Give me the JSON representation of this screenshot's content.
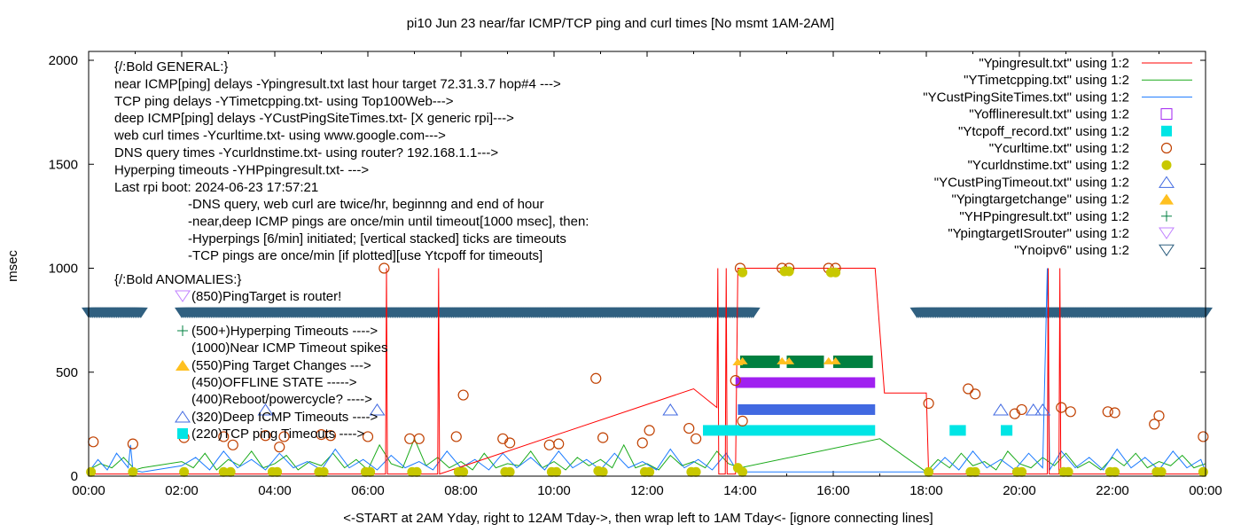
{
  "chart_data": {
    "type": "line",
    "title": "pi10 Jun 23  near/far ICMP/TCP ping and curl times [No msmt 1AM-2AM]",
    "xlabel": "<-START at 2AM Yday, right to 12AM Tday->, then wrap left to 1AM Tday<- [ignore connecting lines]",
    "ylabel": "msec",
    "xlim": [
      0,
      24
    ],
    "ylim": [
      0,
      2000
    ],
    "x_ticks": [
      0,
      2,
      4,
      6,
      8,
      10,
      12,
      14,
      16,
      18,
      20,
      22,
      24
    ],
    "x_tick_labels": [
      "00:00",
      "02:00",
      "04:00",
      "06:00",
      "08:00",
      "10:00",
      "12:00",
      "14:00",
      "16:00",
      "18:00",
      "20:00",
      "22:00",
      "00:00"
    ],
    "y_ticks": [
      0,
      500,
      1000,
      1500,
      2000
    ],
    "y_tick_labels": [
      "0",
      "500",
      "1000",
      "1500",
      "2000"
    ],
    "legend_position": "top-right",
    "legend": [
      {
        "label": "\"Ypingresult.txt\" using 1:2",
        "marker": "line",
        "color": "#ff0000"
      },
      {
        "label": "\"YTimetcpping.txt\" using 1:2",
        "marker": "line",
        "color": "#1aaa1a"
      },
      {
        "label": "\"YCustPingSiteTimes.txt\" using 1:2",
        "marker": "line",
        "color": "#1a7aff"
      },
      {
        "label": "\"Yofflineresult.txt\" using 1:2",
        "marker": "square-open",
        "color": "#a020f0"
      },
      {
        "label": "\"Ytcpoff_record.txt\" using 1:2",
        "marker": "square-filled",
        "color": "#00e5e5"
      },
      {
        "label": "\"Ycurltime.txt\" using 1:2",
        "marker": "circle-open",
        "color": "#c04000"
      },
      {
        "label": "\"Ycurldnstime.txt\" using 1:2",
        "marker": "circle-filled",
        "color": "#c8c800"
      },
      {
        "label": "\"YCustPingTimeout.txt\" using 1:2",
        "marker": "triangle-open",
        "color": "#4169e1"
      },
      {
        "label": "\"Ypingtargetchange\" using 1:2",
        "marker": "triangle-filled",
        "color": "#ffc020"
      },
      {
        "label": "\"YHPpingresult.txt\" using 1:2",
        "marker": "plus",
        "color": "#008040"
      },
      {
        "label": "\"YpingtargetISrouter\" using 1:2",
        "marker": "tri-down-open",
        "color": "#c080ff"
      },
      {
        "label": "\"Ynoipv6\" using 1:2",
        "marker": "tri-down-open",
        "color": "#306080"
      }
    ],
    "general_annotations": [
      "{/:Bold GENERAL:}",
      "near ICMP[ping] delays -Ypingresult.txt last hour target 72.31.3.7 hop#4 --->",
      "TCP ping delays -YTimetcpping.txt- using Top100Web--->",
      "deep ICMP[ping] delays -YCustPingSiteTimes.txt- [X generic rpi]--->",
      "web curl times -Ycurltime.txt- using www.google.com--->",
      "DNS query times -Ycurldnstime.txt- using router? 192.168.1.1--->",
      "Hyperping timeouts -YHPpingresult.txt- --->",
      "Last rpi boot: 2024-06-23 17:57:21"
    ],
    "notes": [
      "-DNS query, web curl are twice/hr, beginnng and end of hour",
      "-near,deep ICMP pings are once/min until timeout[1000 msec], then:",
      "  -Hyperpings [6/min] initiated; [vertical stacked] ticks are timeouts",
      "-TCP pings are once/min [if plotted][use Ytcpoff for timeouts]"
    ],
    "anomalies_title": "{/:Bold ANOMALIES:}",
    "anomalies": [
      {
        "text": "(850)PingTarget is router!",
        "marker": "tri-down-open",
        "color": "#c080ff"
      },
      {
        "text": "(500+)Hyperping Timeouts ---->",
        "marker": "plus",
        "color": "#008040"
      },
      {
        "text": "(1000)Near ICMP Timeout spikes",
        "marker": "none",
        "color": "#000000"
      },
      {
        "text": "(550)Ping Target Changes --->",
        "marker": "triangle-filled",
        "color": "#ffc020"
      },
      {
        "text": "(450)OFFLINE STATE ----->",
        "marker": "none",
        "color": "#000000"
      },
      {
        "text": "(400)Reboot/powercycle? ---->",
        "marker": "none",
        "color": "#000000"
      },
      {
        "text": "(320)Deep ICMP Timeouts ---->",
        "marker": "triangle-open",
        "color": "#4169e1"
      },
      {
        "text": "(220)TCP ping Timeouts ---->",
        "marker": "square-filled",
        "color": "#00e5e5"
      }
    ],
    "series": {
      "Ypingresult": [
        [
          0,
          10
        ],
        [
          6.38,
          10
        ],
        [
          6.4,
          1000
        ],
        [
          6.42,
          10
        ],
        [
          7.5,
          10
        ],
        [
          7.52,
          1000
        ],
        [
          7.54,
          10
        ],
        [
          13.0,
          420
        ],
        [
          13.5,
          330
        ],
        [
          13.52,
          1000
        ],
        [
          13.54,
          10
        ],
        [
          13.68,
          10
        ],
        [
          13.7,
          1000
        ],
        [
          13.72,
          10
        ],
        [
          13.9,
          10
        ],
        [
          13.95,
          1000
        ],
        [
          16.9,
          1000
        ],
        [
          17.1,
          400
        ],
        [
          18.0,
          400
        ],
        [
          18.05,
          10
        ],
        [
          20.6,
          10
        ],
        [
          20.62,
          1000
        ],
        [
          20.64,
          10
        ],
        [
          20.85,
          10
        ],
        [
          20.87,
          1000
        ],
        [
          20.89,
          10
        ],
        [
          24,
          10
        ]
      ],
      "YTimetcpping": [
        [
          0,
          30
        ],
        [
          0.25,
          60
        ],
        [
          0.5,
          40
        ],
        [
          0.75,
          90
        ],
        [
          1.0,
          30
        ],
        [
          1.15,
          40
        ],
        [
          2.0,
          70
        ],
        [
          2.25,
          40
        ],
        [
          2.5,
          110
        ],
        [
          2.75,
          30
        ],
        [
          3.0,
          80
        ],
        [
          3.25,
          50
        ],
        [
          3.5,
          120
        ],
        [
          3.75,
          40
        ],
        [
          4.0,
          60
        ],
        [
          4.25,
          100
        ],
        [
          4.5,
          30
        ],
        [
          4.75,
          70
        ],
        [
          5.0,
          50
        ],
        [
          5.25,
          110
        ],
        [
          5.5,
          40
        ],
        [
          5.75,
          80
        ],
        [
          6.0,
          30
        ],
        [
          6.25,
          150
        ],
        [
          6.5,
          60
        ],
        [
          6.75,
          40
        ],
        [
          7.0,
          180
        ],
        [
          7.25,
          50
        ],
        [
          7.5,
          90
        ],
        [
          7.75,
          40
        ],
        [
          8.0,
          70
        ],
        [
          8.25,
          30
        ],
        [
          8.5,
          110
        ],
        [
          8.75,
          40
        ],
        [
          9.0,
          60
        ],
        [
          9.25,
          50
        ],
        [
          9.5,
          120
        ],
        [
          9.75,
          40
        ],
        [
          10.0,
          70
        ],
        [
          10.25,
          30
        ],
        [
          10.5,
          90
        ],
        [
          10.75,
          50
        ],
        [
          11.0,
          80
        ],
        [
          11.25,
          40
        ],
        [
          11.5,
          150
        ],
        [
          11.75,
          40
        ],
        [
          12.0,
          60
        ],
        [
          12.25,
          30
        ],
        [
          12.5,
          100
        ],
        [
          12.75,
          50
        ],
        [
          13.0,
          70
        ],
        [
          13.25,
          40
        ],
        [
          13.5,
          120
        ],
        [
          13.75,
          60
        ],
        [
          14.0,
          40
        ],
        [
          17.0,
          180
        ],
        [
          18.0,
          20
        ],
        [
          18.25,
          80
        ],
        [
          18.5,
          40
        ],
        [
          18.75,
          110
        ],
        [
          19.0,
          50
        ],
        [
          19.25,
          70
        ],
        [
          19.5,
          30
        ],
        [
          19.75,
          120
        ],
        [
          20.0,
          60
        ],
        [
          20.25,
          40
        ],
        [
          20.5,
          90
        ],
        [
          20.75,
          50
        ],
        [
          21.0,
          110
        ],
        [
          21.25,
          40
        ],
        [
          21.5,
          70
        ],
        [
          21.75,
          30
        ],
        [
          22.0,
          90
        ],
        [
          22.25,
          50
        ],
        [
          22.5,
          110
        ],
        [
          22.75,
          40
        ],
        [
          23.0,
          70
        ],
        [
          23.25,
          50
        ],
        [
          23.5,
          100
        ],
        [
          23.75,
          40
        ],
        [
          24,
          60
        ]
      ],
      "YCustPingSiteTimes": [
        [
          0,
          20
        ],
        [
          0.2,
          80
        ],
        [
          0.4,
          30
        ],
        [
          0.6,
          110
        ],
        [
          0.85,
          40
        ],
        [
          0.9,
          150
        ],
        [
          0.95,
          30
        ],
        [
          1.15,
          20
        ],
        [
          2.0,
          50
        ],
        [
          2.3,
          90
        ],
        [
          2.6,
          30
        ],
        [
          2.9,
          120
        ],
        [
          3.2,
          40
        ],
        [
          3.5,
          80
        ],
        [
          3.8,
          30
        ],
        [
          4.1,
          110
        ],
        [
          4.4,
          40
        ],
        [
          4.7,
          70
        ],
        [
          5.0,
          30
        ],
        [
          5.3,
          130
        ],
        [
          5.6,
          40
        ],
        [
          5.9,
          80
        ],
        [
          6.2,
          30
        ],
        [
          6.5,
          100
        ],
        [
          6.8,
          40
        ],
        [
          7.1,
          70
        ],
        [
          7.4,
          30
        ],
        [
          7.7,
          120
        ],
        [
          8.0,
          40
        ],
        [
          8.3,
          80
        ],
        [
          8.6,
          30
        ],
        [
          8.9,
          110
        ],
        [
          9.2,
          40
        ],
        [
          9.5,
          90
        ],
        [
          9.8,
          30
        ],
        [
          10.1,
          120
        ],
        [
          10.4,
          40
        ],
        [
          10.7,
          80
        ],
        [
          11.0,
          30
        ],
        [
          11.3,
          110
        ],
        [
          11.6,
          40
        ],
        [
          11.9,
          70
        ],
        [
          12.2,
          30
        ],
        [
          12.5,
          130
        ],
        [
          12.8,
          40
        ],
        [
          13.1,
          80
        ],
        [
          13.4,
          30
        ],
        [
          13.7,
          110
        ],
        [
          13.95,
          20
        ],
        [
          14.0,
          20
        ],
        [
          17.0,
          20
        ],
        [
          18.1,
          20
        ],
        [
          18.4,
          90
        ],
        [
          18.7,
          30
        ],
        [
          19.0,
          120
        ],
        [
          19.3,
          40
        ],
        [
          19.6,
          80
        ],
        [
          19.9,
          30
        ],
        [
          20.2,
          110
        ],
        [
          20.5,
          40
        ],
        [
          20.6,
          1000
        ],
        [
          20.65,
          30
        ],
        [
          20.9,
          120
        ],
        [
          21.2,
          40
        ],
        [
          21.5,
          90
        ],
        [
          21.8,
          30
        ],
        [
          22.1,
          130
        ],
        [
          22.4,
          40
        ],
        [
          22.7,
          90
        ],
        [
          23.0,
          30
        ],
        [
          23.3,
          120
        ],
        [
          23.6,
          40
        ],
        [
          23.9,
          80
        ],
        [
          24,
          20
        ]
      ],
      "Ycurltime": [
        [
          0.1,
          165
        ],
        [
          0.95,
          155
        ],
        [
          2.05,
          185
        ],
        [
          2.9,
          190
        ],
        [
          3.1,
          150
        ],
        [
          3.8,
          195
        ],
        [
          4.1,
          140
        ],
        [
          4.2,
          190
        ],
        [
          5.0,
          200
        ],
        [
          5.2,
          195
        ],
        [
          6.0,
          190
        ],
        [
          6.35,
          1000
        ],
        [
          6.9,
          180
        ],
        [
          7.1,
          180
        ],
        [
          7.9,
          190
        ],
        [
          8.05,
          390
        ],
        [
          8.9,
          180
        ],
        [
          9.05,
          160
        ],
        [
          9.9,
          150
        ],
        [
          10.1,
          155
        ],
        [
          10.9,
          470
        ],
        [
          11.05,
          185
        ],
        [
          11.9,
          160
        ],
        [
          12.05,
          220
        ],
        [
          12.9,
          230
        ],
        [
          13.05,
          180
        ],
        [
          13.9,
          460
        ],
        [
          14.0,
          1000
        ],
        [
          14.05,
          265
        ],
        [
          14.9,
          1000
        ],
        [
          15.05,
          1000
        ],
        [
          15.9,
          1000
        ],
        [
          16.05,
          1000
        ],
        [
          18.05,
          350
        ],
        [
          18.9,
          420
        ],
        [
          19.05,
          395
        ],
        [
          19.9,
          300
        ],
        [
          20.05,
          320
        ],
        [
          20.9,
          330
        ],
        [
          21.1,
          310
        ],
        [
          21.9,
          310
        ],
        [
          22.05,
          305
        ],
        [
          22.9,
          250
        ],
        [
          23.0,
          290
        ],
        [
          23.95,
          190
        ]
      ],
      "Ycurldnstime": [
        [
          0.05,
          20
        ],
        [
          0.95,
          20
        ],
        [
          2.05,
          20
        ],
        [
          2.9,
          20
        ],
        [
          3.05,
          20
        ],
        [
          3.95,
          20
        ],
        [
          4.05,
          20
        ],
        [
          4.95,
          20
        ],
        [
          5.05,
          20
        ],
        [
          5.95,
          20
        ],
        [
          6.05,
          20
        ],
        [
          6.95,
          20
        ],
        [
          7.05,
          20
        ],
        [
          7.95,
          20
        ],
        [
          8.05,
          20
        ],
        [
          8.95,
          20
        ],
        [
          9.05,
          20
        ],
        [
          9.95,
          20
        ],
        [
          10.05,
          20
        ],
        [
          10.95,
          25
        ],
        [
          11.05,
          20
        ],
        [
          11.95,
          20
        ],
        [
          12.05,
          20
        ],
        [
          12.95,
          20
        ],
        [
          13.05,
          20
        ],
        [
          13.95,
          40
        ],
        [
          14.05,
          20
        ],
        [
          14.05,
          980
        ],
        [
          14.95,
          985
        ],
        [
          15.05,
          985
        ],
        [
          15.95,
          980
        ],
        [
          16.05,
          980
        ],
        [
          18.05,
          20
        ],
        [
          18.95,
          20
        ],
        [
          19.05,
          20
        ],
        [
          19.95,
          20
        ],
        [
          20.05,
          20
        ],
        [
          20.95,
          20
        ],
        [
          21.05,
          20
        ],
        [
          21.95,
          20
        ],
        [
          22.05,
          20
        ],
        [
          22.95,
          20
        ],
        [
          23.05,
          20
        ],
        [
          23.95,
          20
        ]
      ],
      "YCustPingTimeout_points": [
        [
          3.8,
          320
        ],
        [
          6.2,
          320
        ],
        [
          12.5,
          320
        ],
        [
          19.6,
          320
        ],
        [
          20.3,
          320
        ],
        [
          20.5,
          320
        ]
      ],
      "YCustPingTimeout_ranges": [
        [
          13.95,
          16.9,
          320
        ]
      ],
      "Yofflineresult_ranges": [
        [
          13.9,
          16.9,
          450
        ]
      ],
      "Ytcpoff_ranges": [
        [
          13.2,
          16.9,
          220
        ],
        [
          18.5,
          18.85,
          220
        ],
        [
          19.6,
          19.85,
          220
        ]
      ],
      "YHPpingresult_ranges": [
        [
          14.0,
          14.85,
          520,
          580
        ],
        [
          15.0,
          15.8,
          520,
          580
        ],
        [
          16.0,
          16.85,
          520,
          580
        ]
      ],
      "Ypingtargetchange": [
        [
          13.95,
          550
        ],
        [
          14.05,
          555
        ],
        [
          14.9,
          555
        ],
        [
          15.05,
          555
        ],
        [
          15.9,
          555
        ],
        [
          16.05,
          555
        ]
      ],
      "Ynoipv6_ranges": [
        [
          0,
          1.15,
          785
        ],
        [
          2.0,
          14.3,
          785
        ],
        [
          17.8,
          24,
          785
        ]
      ]
    }
  }
}
